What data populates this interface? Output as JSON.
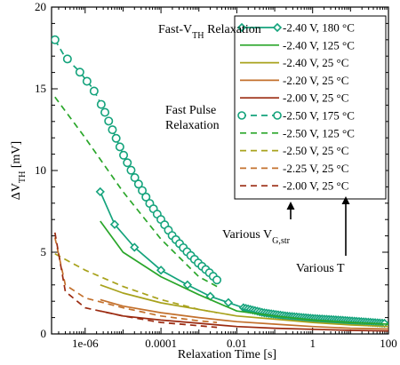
{
  "chart_data": {
    "type": "line",
    "title": "",
    "xlabel": "Relaxation Time [s]",
    "ylabel": {
      "main": "ΔV",
      "sub": "TH",
      "unit": " [mV]"
    },
    "x_scale": "log",
    "xlim": [
      1.3e-07,
      100
    ],
    "ylim": [
      0,
      20
    ],
    "x_ticks": [
      {
        "value": 1e-06,
        "label": "1e-06"
      },
      {
        "value": 0.0001,
        "label": "0.0001"
      },
      {
        "value": 0.01,
        "label": "0.01"
      },
      {
        "value": 1,
        "label": "1"
      },
      {
        "value": 100,
        "label": "100"
      }
    ],
    "y_ticks": [
      {
        "value": 0,
        "label": "0"
      },
      {
        "value": 5,
        "label": "5"
      },
      {
        "value": 10,
        "label": "10"
      },
      {
        "value": 15,
        "label": "15"
      },
      {
        "value": 20,
        "label": "20"
      }
    ],
    "grid": false,
    "legend_position": "top-right",
    "series": [
      {
        "name": "-2.40 V, 180 °C",
        "color": "#14a37c",
        "dash": "solid",
        "marker": "diamond",
        "x": [
          2.5e-06,
          6e-06,
          2e-05,
          0.0001,
          0.0005,
          0.002,
          0.015,
          0.05,
          0.2,
          1,
          5,
          20,
          80
        ],
        "y": [
          8.7,
          6.7,
          5.3,
          3.9,
          3.0,
          2.3,
          1.6,
          1.3,
          1.1,
          0.95,
          0.85,
          0.75,
          0.65
        ]
      },
      {
        "name": "-2.40 V, 125 °C",
        "color": "#2aa62a",
        "dash": "solid",
        "marker": "none",
        "x": [
          2.5e-06,
          1e-05,
          0.0001,
          0.001,
          0.01,
          0.1,
          1,
          10,
          100
        ],
        "y": [
          6.9,
          5.0,
          3.5,
          2.4,
          1.4,
          1.1,
          0.85,
          0.7,
          0.6
        ]
      },
      {
        "name": "-2.40 V,   25 °C",
        "color": "#a8a21c",
        "dash": "solid",
        "marker": "none",
        "x": [
          2.5e-06,
          1e-05,
          0.0001,
          0.001,
          0.01,
          0.1,
          1,
          10,
          100
        ],
        "y": [
          3.0,
          2.5,
          1.9,
          1.5,
          1.1,
          0.9,
          0.7,
          0.55,
          0.45
        ]
      },
      {
        "name": "-2.20 V,   25 °C",
        "color": "#c3702c",
        "dash": "solid",
        "marker": "none",
        "x": [
          2.5e-06,
          1e-05,
          0.0001,
          0.001,
          0.01,
          0.1,
          1,
          10,
          100
        ],
        "y": [
          2.1,
          1.7,
          1.3,
          1.0,
          0.75,
          0.6,
          0.45,
          0.35,
          0.3
        ]
      },
      {
        "name": "-2.00 V,   25 °C",
        "color": "#9b2a10",
        "dash": "solid",
        "marker": "none",
        "x": [
          2.5e-06,
          1e-05,
          0.0001,
          0.001,
          0.01,
          0.1,
          1,
          10,
          100
        ],
        "y": [
          1.4,
          1.1,
          0.85,
          0.65,
          0.45,
          0.35,
          0.28,
          0.22,
          0.18
        ]
      },
      {
        "name": "-2.50 V, 175 °C",
        "color": "#14a37c",
        "dash": "dashed",
        "marker": "circle",
        "x": [
          1.6e-07,
          2.7e-07,
          3.8e-07,
          5e-07,
          6.5e-07,
          8e-07,
          1e-06,
          1.5e-06,
          2e-06,
          3e-06,
          5e-06,
          1e-05,
          2e-05,
          5e-05,
          0.0001,
          0.0002,
          0.0005,
          0.001,
          0.002,
          0.003
        ],
        "y": [
          18.0,
          17.1,
          16.7,
          16.4,
          16.15,
          15.9,
          15.6,
          15.1,
          14.6,
          13.8,
          12.6,
          11.0,
          9.6,
          8.0,
          7.0,
          6.0,
          5.0,
          4.3,
          3.7,
          3.3
        ]
      },
      {
        "name": "-2.50 V, 125 °C",
        "color": "#2aa62a",
        "dash": "dashed",
        "marker": "none",
        "x": [
          1.6e-07,
          1e-06,
          1e-05,
          0.0001,
          0.001,
          0.003
        ],
        "y": [
          14.5,
          12.0,
          8.7,
          5.8,
          3.5,
          2.9
        ]
      },
      {
        "name": "-2.50 V,   25 °C",
        "color": "#a8a21c",
        "dash": "dashed",
        "marker": "none",
        "x": [
          1.6e-07,
          1e-06,
          1e-05,
          0.0001,
          0.001,
          0.003
        ],
        "y": [
          4.9,
          3.9,
          2.9,
          2.1,
          1.5,
          1.3
        ]
      },
      {
        "name": "-2.25 V,   25 °C",
        "color": "#c3702c",
        "dash": "dashed",
        "marker": "none",
        "x": [
          1.6e-07,
          3e-07,
          1e-06,
          1e-05,
          0.0001,
          0.001,
          0.003
        ],
        "y": [
          5.9,
          3.0,
          2.2,
          1.6,
          1.1,
          0.8,
          0.7
        ]
      },
      {
        "name": "-2.00 V,   25 °C",
        "color": "#9b2a10",
        "dash": "dashed",
        "marker": "none",
        "x": [
          1.6e-07,
          3e-07,
          1e-06,
          1e-05,
          0.0001,
          0.001,
          0.003
        ],
        "y": [
          6.2,
          2.6,
          1.6,
          1.1,
          0.7,
          0.5,
          0.4
        ]
      }
    ],
    "annotations": [
      {
        "id": "fast-vth",
        "parts": [
          {
            "t": "Fast-V",
            "sub": false
          },
          {
            "t": "TH",
            "sub": true
          },
          {
            "t": " Relaxation",
            "sub": false
          }
        ]
      },
      {
        "id": "fast-pulse",
        "lines": [
          "Fast Pulse",
          "Relaxation"
        ]
      },
      {
        "id": "various-vg",
        "parts": [
          {
            "t": "Various V",
            "sub": false
          },
          {
            "t": "G,str",
            "sub": true
          }
        ]
      },
      {
        "id": "various-t",
        "text": "Various T"
      }
    ]
  }
}
